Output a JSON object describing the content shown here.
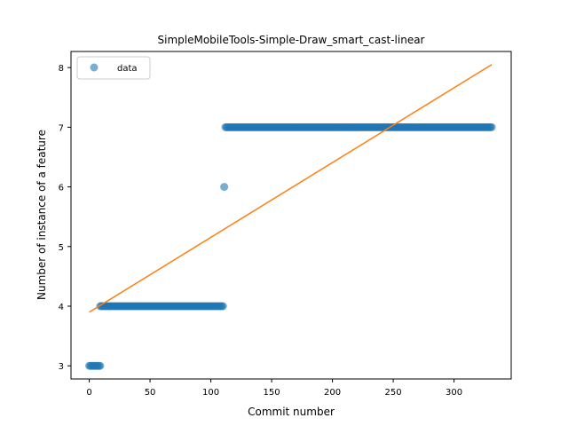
{
  "chart_data": {
    "type": "scatter",
    "title": "SimpleMobileTools-Simple-Draw_smart_cast-linear",
    "xlabel": "Commit number",
    "ylabel": "Number of instance of a feature",
    "xlim": [
      -15,
      347
    ],
    "ylim": [
      2.78,
      8.27
    ],
    "xticks": [
      0,
      50,
      100,
      150,
      200,
      250,
      300
    ],
    "yticks": [
      3,
      4,
      5,
      6,
      7,
      8
    ],
    "grid": false,
    "legend": {
      "position": "top-left",
      "entries": [
        "data"
      ]
    },
    "colors": {
      "data": "#1f77b4",
      "fit": "#ff7f0e"
    },
    "series": [
      {
        "name": "data",
        "kind": "scatter",
        "segments": [
          {
            "x_start": 0,
            "x_end": 9,
            "y": 3
          },
          {
            "x_start": 9,
            "x_end": 110,
            "y": 4
          },
          {
            "x_start": 111,
            "x_end": 111,
            "y": 6
          },
          {
            "x_start": 112,
            "x_end": 331,
            "y": 7
          }
        ]
      },
      {
        "kind": "line",
        "x": [
          0,
          331
        ],
        "y": [
          3.9,
          8.05
        ]
      }
    ]
  }
}
